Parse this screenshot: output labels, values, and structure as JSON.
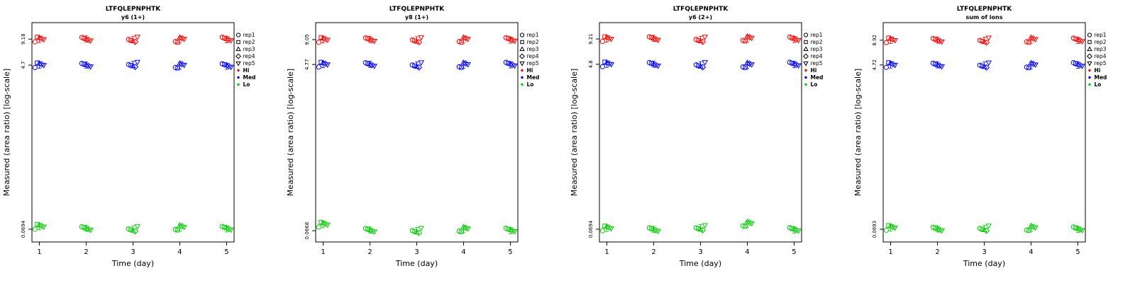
{
  "page": {
    "background": "#ffffff"
  },
  "chart_data": [
    {
      "type": "scatter",
      "title": "LTFQLEPNPHTK",
      "subtitle": "y6 (1+)",
      "xlabel": "Time (day)",
      "ylabel": "Measured (area ratio) [log-scale]",
      "x": [
        1,
        2,
        3,
        4,
        5
      ],
      "xlim": [
        0.84,
        5.16
      ],
      "ylim": [
        0.05,
        14
      ],
      "yscale": "log",
      "grid": false,
      "legend_position": "right-outside",
      "yticks": [
        9.18,
        4.7,
        0.0694
      ],
      "reps": [
        {
          "label": "rep1",
          "symbol": "circle"
        },
        {
          "label": "rep2",
          "symbol": "square"
        },
        {
          "label": "rep3",
          "symbol": "triangle"
        },
        {
          "label": "rep4",
          "symbol": "diamond"
        },
        {
          "label": "rep5",
          "symbol": "triangle-down"
        }
      ],
      "series": [
        {
          "name": "Hi",
          "color": "#FF0000",
          "values": [
            9.1,
            9.2,
            9.1,
            9.0,
            9.05
          ]
        },
        {
          "name": "Med",
          "color": "#0000FF",
          "values": [
            4.7,
            4.72,
            4.78,
            4.62,
            4.58
          ]
        },
        {
          "name": "Lo",
          "color": "#00CC00",
          "values": [
            0.074,
            0.071,
            0.07,
            0.072,
            0.07
          ]
        }
      ]
    },
    {
      "type": "scatter",
      "title": "LTFQLEPNPHTK",
      "subtitle": "y8 (1+)",
      "xlabel": "Time (day)",
      "ylabel": "Measured (area ratio) [log-scale]",
      "x": [
        1,
        2,
        3,
        4,
        5
      ],
      "xlim": [
        0.84,
        5.16
      ],
      "ylim": [
        0.05,
        14
      ],
      "yscale": "log",
      "grid": false,
      "legend_position": "right-outside",
      "yticks": [
        9.05,
        4.77,
        0.0668
      ],
      "reps": [
        {
          "label": "rep1",
          "symbol": "circle"
        },
        {
          "label": "rep2",
          "symbol": "square"
        },
        {
          "label": "rep3",
          "symbol": "triangle"
        },
        {
          "label": "rep4",
          "symbol": "diamond"
        },
        {
          "label": "rep5",
          "symbol": "triangle-down"
        }
      ],
      "series": [
        {
          "name": "Hi",
          "color": "#FF0000",
          "values": [
            9.0,
            9.1,
            9.0,
            9.0,
            8.95
          ]
        },
        {
          "name": "Med",
          "color": "#0000FF",
          "values": [
            4.77,
            4.8,
            4.72,
            4.7,
            4.74
          ]
        },
        {
          "name": "Lo",
          "color": "#00CC00",
          "values": [
            0.078,
            0.068,
            0.067,
            0.069,
            0.067
          ]
        }
      ]
    },
    {
      "type": "scatter",
      "title": "LTFQLEPNPHTK",
      "subtitle": "y6 (2+)",
      "xlabel": "Time (day)",
      "ylabel": "Measured (area ratio) [log-scale]",
      "x": [
        1,
        2,
        3,
        4,
        5
      ],
      "xlim": [
        0.84,
        5.16
      ],
      "ylim": [
        0.05,
        14
      ],
      "yscale": "log",
      "grid": false,
      "legend_position": "right-outside",
      "yticks": [
        9.21,
        4.8,
        0.0694
      ],
      "reps": [
        {
          "label": "rep1",
          "symbol": "circle"
        },
        {
          "label": "rep2",
          "symbol": "square"
        },
        {
          "label": "rep3",
          "symbol": "triangle"
        },
        {
          "label": "rep4",
          "symbol": "diamond"
        },
        {
          "label": "rep5",
          "symbol": "triangle-down"
        }
      ],
      "series": [
        {
          "name": "Hi",
          "color": "#FF0000",
          "values": [
            9.2,
            9.35,
            9.1,
            9.25,
            9.1
          ]
        },
        {
          "name": "Med",
          "color": "#0000FF",
          "values": [
            4.8,
            4.82,
            4.74,
            4.68,
            4.76
          ]
        },
        {
          "name": "Lo",
          "color": "#00CC00",
          "values": [
            0.071,
            0.069,
            0.072,
            0.079,
            0.068
          ]
        }
      ]
    },
    {
      "type": "scatter",
      "title": "LTFQLEPNPHTK",
      "subtitle": "sum of ions",
      "xlabel": "Time (day)",
      "ylabel": "Measured (area ratio) [log-scale]",
      "x": [
        1,
        2,
        3,
        4,
        5
      ],
      "xlim": [
        0.84,
        5.16
      ],
      "ylim": [
        0.05,
        14
      ],
      "yscale": "log",
      "grid": false,
      "legend_position": "right-outside",
      "yticks": [
        8.92,
        4.72,
        0.0693
      ],
      "reps": [
        {
          "label": "rep1",
          "symbol": "circle"
        },
        {
          "label": "rep2",
          "symbol": "square"
        },
        {
          "label": "rep3",
          "symbol": "triangle"
        },
        {
          "label": "rep4",
          "symbol": "diamond"
        },
        {
          "label": "rep5",
          "symbol": "triangle-down"
        }
      ],
      "series": [
        {
          "name": "Hi",
          "color": "#FF0000",
          "values": [
            8.9,
            8.95,
            8.9,
            8.95,
            8.85
          ]
        },
        {
          "name": "Med",
          "color": "#0000FF",
          "values": [
            4.72,
            4.74,
            4.7,
            4.66,
            4.7
          ]
        },
        {
          "name": "Lo",
          "color": "#00CC00",
          "values": [
            0.072,
            0.07,
            0.071,
            0.071,
            0.069
          ]
        }
      ]
    }
  ]
}
